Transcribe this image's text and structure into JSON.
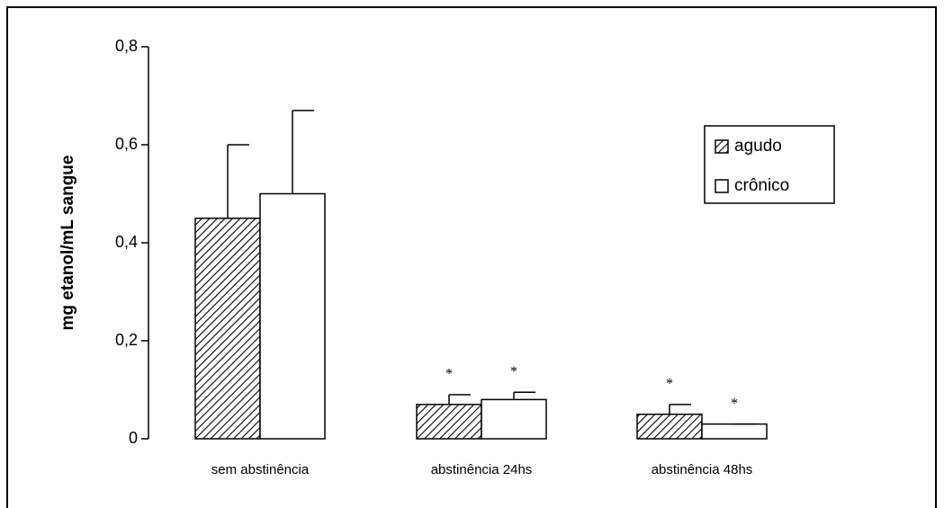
{
  "chart_data": {
    "type": "bar",
    "y_label": "mg etanol/mL sangue",
    "categories": [
      "sem abstinência",
      "abstinência 24hs",
      "abstinência 48hs"
    ],
    "series": [
      {
        "name": "agudo",
        "color": "#000000",
        "pattern": "hatch",
        "values": [
          0.45,
          0.07,
          0.05
        ],
        "errors": [
          0.15,
          0.02,
          0.02
        ],
        "significance": [
          null,
          "*",
          "*"
        ]
      },
      {
        "name": "crônico",
        "color": "#ffffff",
        "pattern": "solid",
        "values": [
          0.5,
          0.08,
          0.03
        ],
        "errors": [
          0.17,
          0.015,
          0
        ],
        "significance": [
          null,
          "*",
          "*"
        ]
      }
    ],
    "ylim": [
      0,
      0.8
    ],
    "yticks": [
      0,
      {
        "value": 0.2,
        "label": "0,2"
      },
      {
        "value": 0.4,
        "label": "0,4"
      },
      {
        "value": 0.6,
        "label": "0,6"
      },
      {
        "value": 0.8,
        "label": "0,8"
      }
    ],
    "grid": false,
    "legend": "upper-right"
  }
}
